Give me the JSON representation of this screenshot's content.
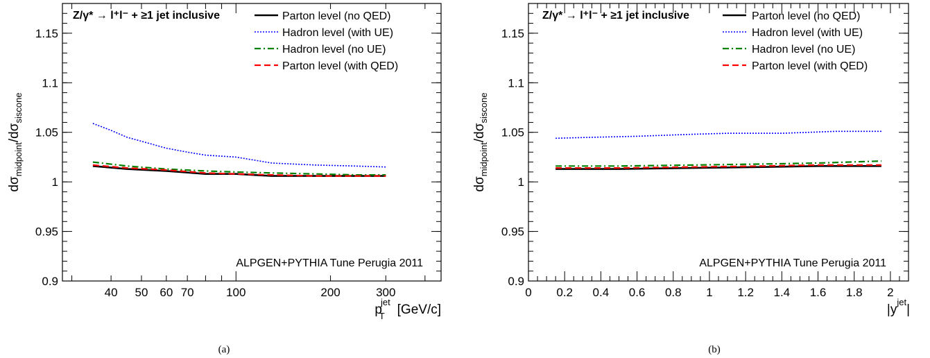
{
  "chart_data": [
    {
      "type": "line",
      "panel": "(a)",
      "process": "Z/γ* → l⁺l⁻ + ≥1 jet inclusive",
      "generator": "ALPGEN+PYTHIA Tune Perugia 2011",
      "xlabel": "p_T^jet [GeV/c]",
      "ylabel": "dσ_midpoint/dσ_siscone",
      "xscale": "log",
      "xlim": [
        28,
        450
      ],
      "ylim": [
        0.9,
        1.18
      ],
      "x_ticks": [
        40,
        50,
        60,
        70,
        100,
        200,
        300
      ],
      "y_ticks": [
        "0.9",
        "0.95",
        "1",
        "1.05",
        "1.1",
        "1.15"
      ],
      "legend_position": "top-right",
      "series": [
        {
          "name": "Parton level (no QED)",
          "color": "#000000",
          "style": "solid",
          "x": [
            35,
            45,
            60,
            80,
            100,
            130,
            180,
            240,
            300
          ],
          "y": [
            1.016,
            1.013,
            1.011,
            1.008,
            1.008,
            1.006,
            1.006,
            1.006,
            1.006
          ]
        },
        {
          "name": "Hadron level (with UE)",
          "color": "#0000ff",
          "style": "dotted",
          "x": [
            35,
            40,
            45,
            50,
            60,
            70,
            80,
            100,
            130,
            180,
            240,
            300
          ],
          "y": [
            1.059,
            1.052,
            1.045,
            1.041,
            1.034,
            1.03,
            1.027,
            1.025,
            1.019,
            1.017,
            1.016,
            1.015
          ]
        },
        {
          "name": "Hadron level (no UE)",
          "color": "#008000",
          "style": "dashdot",
          "x": [
            35,
            45,
            60,
            80,
            100,
            130,
            180,
            240,
            300
          ],
          "y": [
            1.02,
            1.016,
            1.013,
            1.011,
            1.01,
            1.009,
            1.008,
            1.007,
            1.007
          ]
        },
        {
          "name": "Parton level (with QED)",
          "color": "#ff0000",
          "style": "dashed",
          "x": [
            35,
            45,
            60,
            80,
            100,
            130,
            180,
            240,
            300
          ],
          "y": [
            1.017,
            1.014,
            1.012,
            1.009,
            1.008,
            1.007,
            1.006,
            1.006,
            1.006
          ]
        }
      ]
    },
    {
      "type": "line",
      "panel": "(b)",
      "process": "Z/γ* → l⁺l⁻ + ≥1 jet inclusive",
      "generator": "ALPGEN+PYTHIA Tune Perugia 2011",
      "xlabel": "|y^jet|",
      "ylabel": "dσ_midpoint/dσ_siscone",
      "xscale": "linear",
      "xlim": [
        0,
        2.1
      ],
      "ylim": [
        0.9,
        1.18
      ],
      "x_ticks": [
        "0",
        "0.2",
        "0.4",
        "0.6",
        "0.8",
        "1",
        "1.2",
        "1.4",
        "1.6",
        "1.8",
        "2"
      ],
      "y_ticks": [
        "0.9",
        "0.95",
        "1",
        "1.05",
        "1.1",
        "1.15"
      ],
      "legend_position": "top-right",
      "series": [
        {
          "name": "Parton level (no QED)",
          "color": "#000000",
          "style": "solid",
          "x": [
            0.15,
            0.5,
            0.9,
            1.3,
            1.6,
            1.95
          ],
          "y": [
            1.013,
            1.013,
            1.014,
            1.015,
            1.016,
            1.016
          ]
        },
        {
          "name": "Hadron level (with UE)",
          "color": "#0000ff",
          "style": "dotted",
          "x": [
            0.15,
            0.35,
            0.6,
            0.9,
            1.1,
            1.4,
            1.7,
            1.95
          ],
          "y": [
            1.044,
            1.045,
            1.046,
            1.048,
            1.049,
            1.049,
            1.051,
            1.051
          ]
        },
        {
          "name": "Hadron level (no UE)",
          "color": "#008000",
          "style": "dashdot",
          "x": [
            0.15,
            0.5,
            0.9,
            1.3,
            1.6,
            1.95
          ],
          "y": [
            1.016,
            1.016,
            1.017,
            1.018,
            1.019,
            1.021
          ]
        },
        {
          "name": "Parton level (with QED)",
          "color": "#ff0000",
          "style": "dashed",
          "x": [
            0.15,
            0.5,
            0.9,
            1.3,
            1.6,
            1.95
          ],
          "y": [
            1.014,
            1.014,
            1.015,
            1.016,
            1.017,
            1.017
          ]
        }
      ]
    }
  ],
  "captions": [
    "(a)",
    "(b)"
  ]
}
